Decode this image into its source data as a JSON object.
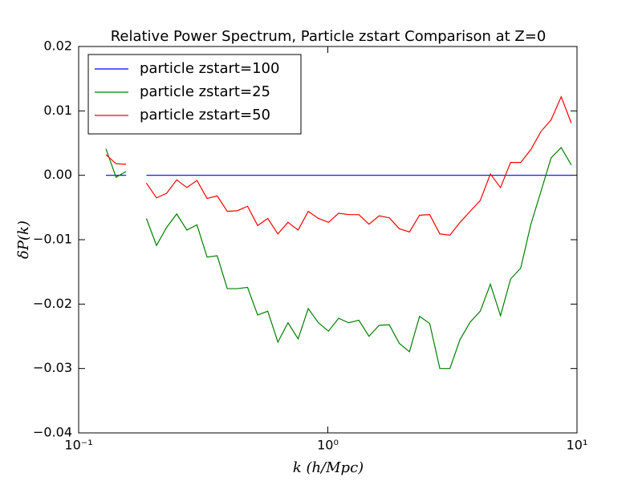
{
  "chart_data": {
    "type": "line",
    "title": "Relative Power Spectrum, Particle zstart Comparison at Z=0",
    "xlabel": "k (h/Mpc)",
    "ylabel": "δP(k)",
    "xscale": "log",
    "legend": "upper left",
    "x": [
      0.1287,
      0.1413,
      0.1551,
      0.1703,
      0.187,
      0.2053,
      0.2254,
      0.2475,
      0.2718,
      0.2984,
      0.3277,
      0.3598,
      0.395,
      0.4337,
      0.4762,
      0.5229,
      0.5741,
      0.6303,
      0.6921,
      0.76,
      0.8345,
      0.9165,
      1.0062,
      1.105,
      1.213,
      1.332,
      1.463,
      1.606,
      1.764,
      1.936,
      2.126,
      2.334,
      2.563,
      2.815,
      3.09,
      3.393,
      3.726,
      4.091,
      4.492,
      4.932,
      5.415,
      5.946,
      6.529,
      7.168,
      7.871,
      8.642,
      9.487
    ],
    "series": [
      {
        "name": "particle zstart=100",
        "color": "#0000ff",
        "values": [
          0,
          0,
          0,
          null,
          0,
          0,
          0,
          0,
          0,
          0,
          0,
          0,
          0,
          0,
          0,
          0,
          0,
          0,
          0,
          0,
          0,
          0,
          0,
          0,
          0,
          0,
          0,
          0,
          0,
          0,
          0,
          0,
          0,
          0,
          0,
          0,
          0,
          0,
          0,
          0,
          0,
          0,
          0,
          0,
          0,
          0,
          0
        ]
      },
      {
        "name": "particle zstart=25",
        "color": "#008000",
        "values": [
          0.0041,
          -0.0003,
          0.0006,
          null,
          -0.0067,
          -0.0109,
          -0.0081,
          -0.006,
          -0.0085,
          -0.0077,
          -0.0127,
          -0.0125,
          -0.0176,
          -0.0176,
          -0.0174,
          -0.0217,
          -0.0211,
          -0.0259,
          -0.0229,
          -0.0254,
          -0.0207,
          -0.0229,
          -0.0242,
          -0.0222,
          -0.0229,
          -0.0225,
          -0.025,
          -0.0233,
          -0.0232,
          -0.0261,
          -0.0274,
          -0.0219,
          -0.023,
          -0.03,
          -0.03,
          -0.0255,
          -0.0228,
          -0.0211,
          -0.0169,
          -0.0218,
          -0.0161,
          -0.0144,
          -0.0076,
          -0.0025,
          0.0027,
          0.0043,
          0.0016
        ]
      },
      {
        "name": "particle zstart=50",
        "color": "#ff0000",
        "values": [
          0.0032,
          0.0018,
          0.0017,
          null,
          -0.0012,
          -0.0035,
          -0.0028,
          -0.0007,
          -0.0019,
          -0.0008,
          -0.0036,
          -0.0032,
          -0.0056,
          -0.0055,
          -0.0048,
          -0.0078,
          -0.0067,
          -0.0091,
          -0.0073,
          -0.0085,
          -0.0056,
          -0.0067,
          -0.0073,
          -0.0059,
          -0.0061,
          -0.0061,
          -0.0076,
          -0.0063,
          -0.0066,
          -0.0083,
          -0.0088,
          -0.0062,
          -0.0061,
          -0.0091,
          -0.0093,
          -0.0073,
          -0.0056,
          -0.0039,
          0.0002,
          -0.0019,
          0.002,
          0.002,
          0.004,
          0.0068,
          0.0086,
          0.0122,
          0.0081
        ]
      }
    ],
    "xlim": [
      0.1,
      10
    ],
    "xticks": [
      {
        "value": 0.1,
        "label": "10⁻¹"
      },
      {
        "value": 1,
        "label": "10⁰"
      },
      {
        "value": 10,
        "label": "10¹"
      }
    ],
    "ylim": [
      -0.04,
      0.02
    ],
    "yticks": [
      {
        "value": -0.04,
        "label": "−0.04"
      },
      {
        "value": -0.03,
        "label": "−0.03"
      },
      {
        "value": -0.02,
        "label": "−0.02"
      },
      {
        "value": -0.01,
        "label": "−0.01"
      },
      {
        "value": 0,
        "label": "0.00"
      },
      {
        "value": 0.01,
        "label": "0.01"
      },
      {
        "value": 0.02,
        "label": "0.02"
      }
    ]
  }
}
